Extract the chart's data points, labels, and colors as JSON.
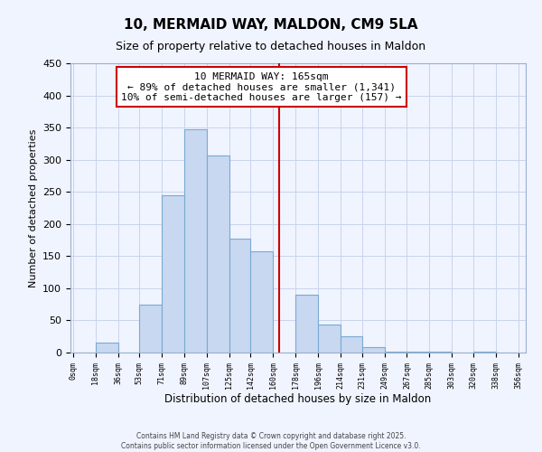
{
  "title": "10, MERMAID WAY, MALDON, CM9 5LA",
  "subtitle": "Size of property relative to detached houses in Maldon",
  "xlabel": "Distribution of detached houses by size in Maldon",
  "ylabel": "Number of detached properties",
  "footer_line1": "Contains HM Land Registry data © Crown copyright and database right 2025.",
  "footer_line2": "Contains public sector information licensed under the Open Government Licence v3.0.",
  "annotation_line1": "10 MERMAID WAY: 165sqm",
  "annotation_line2": "← 89% of detached houses are smaller (1,341)",
  "annotation_line3": "10% of semi-detached houses are larger (157) →",
  "bar_color": "#c8d8f0",
  "bar_edge_color": "#7aaad0",
  "vline_color": "#cc0000",
  "vline_x": 165,
  "bin_edges": [
    0,
    18,
    36,
    53,
    71,
    89,
    107,
    125,
    142,
    160,
    178,
    196,
    214,
    231,
    249,
    267,
    285,
    303,
    320,
    338,
    356
  ],
  "bin_heights": [
    0,
    16,
    0,
    74,
    244,
    348,
    307,
    177,
    158,
    0,
    90,
    44,
    25,
    8,
    2,
    2,
    1,
    0,
    1,
    0
  ],
  "ylim": [
    0,
    450
  ],
  "yticks": [
    0,
    50,
    100,
    150,
    200,
    250,
    300,
    350,
    400,
    450
  ],
  "xlim_left": -2,
  "xlim_right": 362,
  "background_color": "#f0f4ff",
  "grid_color": "#c8d4ec"
}
